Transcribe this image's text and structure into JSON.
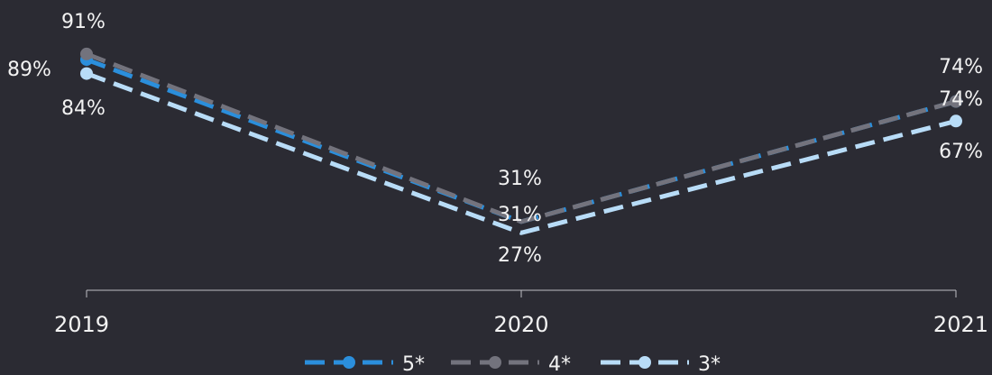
{
  "chart_data": {
    "type": "line",
    "x": [
      "2019",
      "2020",
      "2021"
    ],
    "series": [
      {
        "name": "5*",
        "values": [
          89,
          31,
          74
        ],
        "color": "#2b8fdc"
      },
      {
        "name": "4*",
        "values": [
          91,
          31,
          74
        ],
        "color": "#73737d"
      },
      {
        "name": "3*",
        "values": [
          84,
          27,
          67
        ],
        "color": "#b8dcf7"
      }
    ],
    "data_labels": [
      [
        "89%",
        "31%",
        "74%"
      ],
      [
        "91%",
        "31%",
        "74%"
      ],
      [
        "84%",
        "27%",
        "67%"
      ]
    ],
    "line_style": "dashed",
    "markers": "first-and-last",
    "axis_color": "#bfbfc4",
    "grid": false,
    "legend_position": "bottom"
  }
}
